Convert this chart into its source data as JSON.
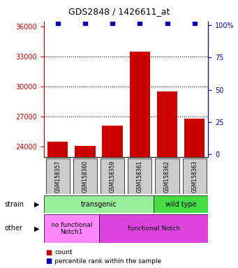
{
  "title": "GDS2848 / 1426611_at",
  "samples": [
    "GSM158357",
    "GSM158360",
    "GSM158359",
    "GSM158361",
    "GSM158362",
    "GSM158363"
  ],
  "counts": [
    24500,
    24100,
    26100,
    33500,
    29500,
    26800
  ],
  "percentile_values": [
    99,
    99,
    99,
    99,
    99,
    99
  ],
  "ylim_left": [
    23000,
    36500
  ],
  "ylim_right": [
    -2,
    103
  ],
  "yticks_left": [
    24000,
    27000,
    30000,
    33000,
    36000
  ],
  "yticks_right": [
    0,
    25,
    50,
    75,
    100
  ],
  "bar_color": "#cc0000",
  "dot_color": "#0000bb",
  "bar_width": 0.75,
  "left_axis_color": "#cc0000",
  "right_axis_color": "#0000bb",
  "grid_dotted_at": [
    27000,
    30000,
    33000
  ],
  "strain_transgenic_color": "#99ee99",
  "strain_wildtype_color": "#44dd44",
  "other_nofunc_color": "#ff88ff",
  "other_func_color": "#dd44dd",
  "sample_box_color": "#cccccc",
  "legend_count_color": "#cc0000",
  "legend_perc_color": "#0000bb"
}
